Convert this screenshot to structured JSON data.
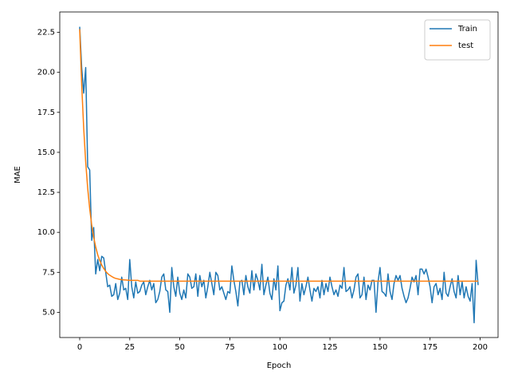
{
  "chart_data": {
    "type": "line",
    "xlabel": "Epoch",
    "ylabel": "MAE",
    "x": [
      0,
      1,
      2,
      3,
      4,
      5,
      6,
      7,
      8,
      9,
      10,
      11,
      12,
      13,
      14,
      15,
      16,
      17,
      18,
      19,
      20,
      21,
      22,
      23,
      24,
      25,
      26,
      27,
      28,
      29,
      30,
      31,
      32,
      33,
      34,
      35,
      36,
      37,
      38,
      39,
      40,
      41,
      42,
      43,
      44,
      45,
      46,
      47,
      48,
      49,
      50,
      51,
      52,
      53,
      54,
      55,
      56,
      57,
      58,
      59,
      60,
      61,
      62,
      63,
      64,
      65,
      66,
      67,
      68,
      69,
      70,
      71,
      72,
      73,
      74,
      75,
      76,
      77,
      78,
      79,
      80,
      81,
      82,
      83,
      84,
      85,
      86,
      87,
      88,
      89,
      90,
      91,
      92,
      93,
      94,
      95,
      96,
      97,
      98,
      99,
      100,
      101,
      102,
      103,
      104,
      105,
      106,
      107,
      108,
      109,
      110,
      111,
      112,
      113,
      114,
      115,
      116,
      117,
      118,
      119,
      120,
      121,
      122,
      123,
      124,
      125,
      126,
      127,
      128,
      129,
      130,
      131,
      132,
      133,
      134,
      135,
      136,
      137,
      138,
      139,
      140,
      141,
      142,
      143,
      144,
      145,
      146,
      147,
      148,
      149,
      150,
      151,
      152,
      153,
      154,
      155,
      156,
      157,
      158,
      159,
      160,
      161,
      162,
      163,
      164,
      165,
      166,
      167,
      168,
      169,
      170,
      171,
      172,
      173,
      174,
      175,
      176,
      177,
      178,
      179,
      180,
      181,
      182,
      183,
      184,
      185,
      186,
      187,
      188,
      189,
      190,
      191,
      192,
      193,
      194,
      195,
      196,
      197,
      198,
      199
    ],
    "series": [
      {
        "name": "Train",
        "color": "#1f77b4",
        "values": [
          22.85,
          20.3,
          18.7,
          20.3,
          14.1,
          13.9,
          9.5,
          10.3,
          7.4,
          8.3,
          7.6,
          8.5,
          8.4,
          7.5,
          6.6,
          6.7,
          6.0,
          6.1,
          6.8,
          5.8,
          6.2,
          7.2,
          6.4,
          6.5,
          5.8,
          8.3,
          6.6,
          5.9,
          6.9,
          6.2,
          6.3,
          6.7,
          6.9,
          6.1,
          6.6,
          7.0,
          6.4,
          6.8,
          5.6,
          5.8,
          6.3,
          7.2,
          7.4,
          6.4,
          6.3,
          5.0,
          7.8,
          6.6,
          6.0,
          7.2,
          6.2,
          5.8,
          6.4,
          5.9,
          7.4,
          7.2,
          6.5,
          6.6,
          7.4,
          6.0,
          7.3,
          6.6,
          7.0,
          5.9,
          6.6,
          7.5,
          6.8,
          6.1,
          7.5,
          7.3,
          6.4,
          6.6,
          6.2,
          5.8,
          6.3,
          6.2,
          7.9,
          7.0,
          6.3,
          5.4,
          6.9,
          7.0,
          6.1,
          7.3,
          6.6,
          6.2,
          7.6,
          6.4,
          7.4,
          7.0,
          6.4,
          8.0,
          6.1,
          6.7,
          7.2,
          6.2,
          5.8,
          7.1,
          6.4,
          7.9,
          5.1,
          5.6,
          5.7,
          6.7,
          7.1,
          6.4,
          7.8,
          6.2,
          6.7,
          7.8,
          5.7,
          6.8,
          6.1,
          6.6,
          7.2,
          6.4,
          5.7,
          6.5,
          6.3,
          6.6,
          5.9,
          7.0,
          6.1,
          6.8,
          6.3,
          7.2,
          6.6,
          6.1,
          6.4,
          6.0,
          6.7,
          6.5,
          7.8,
          6.3,
          6.4,
          6.6,
          5.9,
          6.4,
          7.2,
          7.4,
          5.9,
          6.1,
          7.2,
          5.8,
          6.7,
          6.4,
          7.0,
          7.0,
          5.0,
          6.9,
          7.8,
          6.3,
          6.2,
          6.0,
          7.4,
          6.3,
          5.8,
          6.8,
          7.3,
          7.0,
          7.3,
          6.5,
          6.0,
          5.6,
          5.9,
          6.5,
          7.2,
          6.9,
          7.3,
          6.1,
          7.7,
          7.7,
          7.4,
          7.7,
          7.2,
          6.6,
          5.6,
          6.6,
          6.8,
          6.1,
          6.5,
          5.8,
          7.5,
          6.2,
          6.0,
          6.6,
          7.1,
          6.3,
          5.9,
          7.3,
          6.1,
          6.9,
          5.9,
          6.6,
          6.0,
          5.7,
          6.8,
          4.35,
          8.25,
          6.7
        ]
      },
      {
        "name": "test",
        "color": "#ff7f0e",
        "values": [
          22.7,
          19.22,
          16.51,
          14.39,
          12.75,
          11.47,
          10.46,
          9.69,
          9.08,
          8.6,
          8.24,
          7.96,
          7.74,
          7.56,
          7.42,
          7.32,
          7.24,
          7.17,
          7.12,
          7.09,
          7.06,
          7.04,
          7.03,
          7.02,
          7.01,
          7.0,
          7.0,
          7.0,
          7.0,
          7.0,
          6.95,
          6.95,
          6.95,
          6.95,
          6.95,
          6.95,
          6.95,
          6.95,
          6.95,
          6.95,
          6.95,
          6.95,
          6.95,
          6.95,
          6.95,
          6.95,
          6.95,
          6.95,
          6.95,
          6.95,
          6.95,
          6.95,
          6.95,
          6.95,
          6.95,
          6.95,
          6.95,
          6.95,
          6.95,
          6.95,
          6.95,
          6.95,
          6.95,
          6.95,
          6.95,
          6.95,
          6.95,
          6.95,
          6.95,
          6.95,
          6.95,
          6.95,
          6.95,
          6.95,
          6.95,
          6.95,
          6.95,
          6.95,
          6.95,
          6.95,
          6.95,
          6.95,
          6.95,
          6.95,
          6.95,
          6.95,
          6.95,
          6.95,
          6.95,
          6.95,
          6.95,
          6.95,
          6.95,
          6.95,
          6.95,
          6.95,
          6.95,
          6.95,
          6.95,
          6.95,
          6.95,
          6.95,
          6.95,
          6.95,
          6.95,
          6.95,
          6.95,
          6.95,
          6.95,
          6.95,
          6.95,
          6.95,
          6.95,
          6.95,
          6.95,
          6.95,
          6.95,
          6.95,
          6.95,
          6.95,
          6.95,
          6.95,
          6.95,
          6.95,
          6.95,
          6.95,
          6.95,
          6.95,
          6.95,
          6.95,
          6.95,
          6.95,
          6.95,
          6.95,
          6.95,
          6.95,
          6.95,
          6.95,
          6.95,
          6.95,
          6.95,
          6.95,
          6.95,
          6.95,
          6.95,
          6.95,
          6.95,
          6.95,
          6.95,
          6.95,
          6.95,
          6.95,
          6.95,
          6.95,
          6.95,
          6.95,
          6.95,
          6.95,
          6.95,
          6.95,
          6.95,
          6.95,
          6.95,
          6.95,
          6.95,
          6.95,
          6.95,
          6.95,
          6.95,
          6.95,
          6.95,
          6.95,
          6.95,
          6.95,
          6.95,
          6.95,
          6.95,
          6.95,
          6.95,
          6.95,
          6.95,
          6.95,
          6.95,
          6.95,
          6.95,
          6.95,
          6.95,
          6.95,
          6.95,
          6.95,
          6.95,
          6.95,
          6.95,
          6.95,
          6.95,
          6.95,
          6.95,
          6.95,
          6.95,
          6.95
        ]
      }
    ],
    "xlim": [
      -9.95,
      208.95
    ],
    "xticks": [
      0,
      25,
      50,
      75,
      100,
      125,
      150,
      175,
      200
    ],
    "ylim": [
      3.425,
      23.775
    ],
    "yticks": [
      {
        "value": 5,
        "label": "5.0"
      },
      7.5,
      {
        "value": 10,
        "label": "10.0"
      },
      12.5,
      {
        "value": 15,
        "label": "15.0"
      },
      17.5,
      {
        "value": 20,
        "label": "20.0"
      },
      22.5
    ],
    "legend": "upper right"
  }
}
